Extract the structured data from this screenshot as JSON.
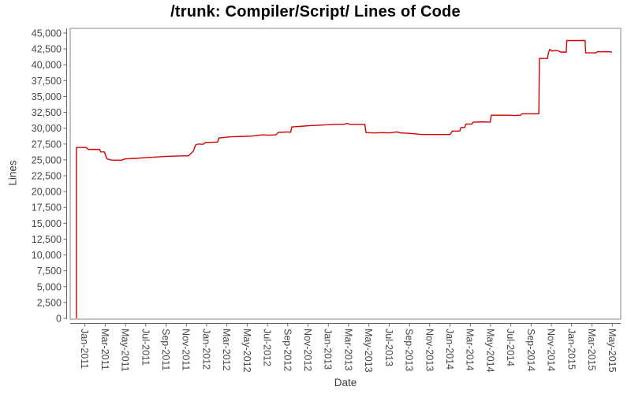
{
  "chart_data": {
    "type": "line",
    "title": "/trunk: Compiler/Script/ Lines of Code",
    "xlabel": "Date",
    "ylabel": "Lines",
    "ylim": [
      0,
      45000
    ],
    "ytick_step": 2500,
    "xlim_years": [
      2010.879,
      2015.403
    ],
    "xtick_start_year": 2011.0,
    "xtick_step_months": 2,
    "xtick_labels": [
      "Jan-2011",
      "Mar-2011",
      "May-2011",
      "Jul-2011",
      "Sep-2011",
      "Nov-2011",
      "Jan-2012",
      "Mar-2012",
      "May-2012",
      "Jul-2012",
      "Sep-2012",
      "Nov-2012",
      "Jan-2013",
      "Mar-2013",
      "May-2013",
      "Jul-2013",
      "Sep-2013",
      "Nov-2013",
      "Jan-2014",
      "Mar-2014",
      "May-2014",
      "Jul-2014",
      "Sep-2014",
      "Nov-2014",
      "Jan-2015",
      "Mar-2015",
      "May-2015"
    ],
    "grid": false,
    "legend": "none",
    "series": [
      {
        "name": "Lines of Code",
        "color": "#d40000",
        "points": [
          [
            2010.93,
            0
          ],
          [
            2010.93,
            26950
          ],
          [
            2011.01,
            26950
          ],
          [
            2011.03,
            26650
          ],
          [
            2011.12,
            26650
          ],
          [
            2011.13,
            26250
          ],
          [
            2011.16,
            26250
          ],
          [
            2011.18,
            25200
          ],
          [
            2011.21,
            25000
          ],
          [
            2011.25,
            24950
          ],
          [
            2011.3,
            24950
          ],
          [
            2011.33,
            25150
          ],
          [
            2011.42,
            25250
          ],
          [
            2011.5,
            25350
          ],
          [
            2011.58,
            25450
          ],
          [
            2011.67,
            25550
          ],
          [
            2011.75,
            25600
          ],
          [
            2011.85,
            25650
          ],
          [
            2011.87,
            26000
          ],
          [
            2011.89,
            26350
          ],
          [
            2011.91,
            27350
          ],
          [
            2011.93,
            27500
          ],
          [
            2011.97,
            27450
          ],
          [
            2011.99,
            27750
          ],
          [
            2012.09,
            27800
          ],
          [
            2012.1,
            28450
          ],
          [
            2012.2,
            28650
          ],
          [
            2012.3,
            28700
          ],
          [
            2012.37,
            28750
          ],
          [
            2012.46,
            28950
          ],
          [
            2012.51,
            28900
          ],
          [
            2012.57,
            28950
          ],
          [
            2012.59,
            29350
          ],
          [
            2012.66,
            29400
          ],
          [
            2012.69,
            29350
          ],
          [
            2012.7,
            30200
          ],
          [
            2012.78,
            30300
          ],
          [
            2012.85,
            30400
          ],
          [
            2012.95,
            30500
          ],
          [
            2013.05,
            30600
          ],
          [
            2013.13,
            30600
          ],
          [
            2013.15,
            30750
          ],
          [
            2013.18,
            30600
          ],
          [
            2013.3,
            30600
          ],
          [
            2013.31,
            29300
          ],
          [
            2013.38,
            29250
          ],
          [
            2013.45,
            29300
          ],
          [
            2013.5,
            29250
          ],
          [
            2013.57,
            29400
          ],
          [
            2013.59,
            29250
          ],
          [
            2013.65,
            29200
          ],
          [
            2013.72,
            29100
          ],
          [
            2013.77,
            29000
          ],
          [
            2014.0,
            29000
          ],
          [
            2014.02,
            29550
          ],
          [
            2014.08,
            29550
          ],
          [
            2014.09,
            30100
          ],
          [
            2014.12,
            30100
          ],
          [
            2014.13,
            30650
          ],
          [
            2014.18,
            30650
          ],
          [
            2014.19,
            30950
          ],
          [
            2014.27,
            31000
          ],
          [
            2014.33,
            30950
          ],
          [
            2014.34,
            32050
          ],
          [
            2014.5,
            32050
          ],
          [
            2014.52,
            32000
          ],
          [
            2014.58,
            32050
          ],
          [
            2014.59,
            32270
          ],
          [
            2014.73,
            32270
          ],
          [
            2014.735,
            41000
          ],
          [
            2014.8,
            41000
          ],
          [
            2014.81,
            41950
          ],
          [
            2014.82,
            42430
          ],
          [
            2014.84,
            42150
          ],
          [
            2014.86,
            42250
          ],
          [
            2014.89,
            42200
          ],
          [
            2014.91,
            42000
          ],
          [
            2014.955,
            42000
          ],
          [
            2014.96,
            43820
          ],
          [
            2015.11,
            43820
          ],
          [
            2015.115,
            41880
          ],
          [
            2015.2,
            41880
          ],
          [
            2015.21,
            42060
          ],
          [
            2015.32,
            42060
          ],
          [
            2015.33,
            41950
          ]
        ]
      }
    ]
  },
  "colors": {
    "accent": "#d40000",
    "axis_line": "#666666",
    "tick_text": "#474747",
    "plot_border": "#848484",
    "background": "#ffffff"
  }
}
